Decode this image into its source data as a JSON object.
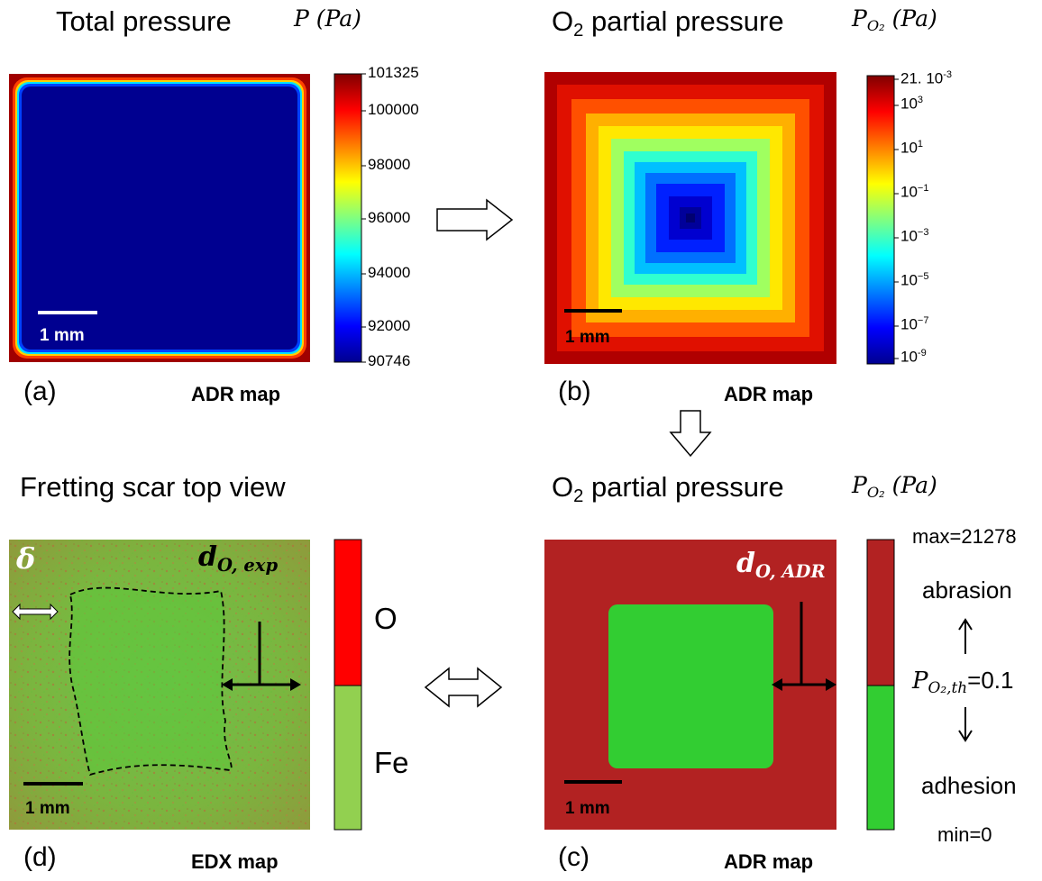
{
  "panel_a": {
    "title": "Total pressure",
    "colorbar_label": "P (Pa)",
    "ticks": [
      "101325",
      "100000",
      "98000",
      "96000",
      "94000",
      "92000",
      "90746"
    ],
    "scale": "1 mm",
    "letter": "(a)",
    "tag": "ADR map"
  },
  "panel_b": {
    "title_pre": "O",
    "title_sub": "2",
    "title_post": " partial pressure",
    "colorbar_label_pre": "P",
    "colorbar_label_sub": "O₂",
    "colorbar_label_post": " (Pa)",
    "tick_top": "21. 10",
    "tick_top_exp": "-3",
    "tick_exps": [
      "3",
      "1",
      "−1",
      "−3",
      "−5",
      "−7"
    ],
    "tick_base": "10",
    "tick_bottom": "10",
    "tick_bottom_exp": "-9",
    "scale": "1 mm",
    "letter": "(b)",
    "tag": "ADR map"
  },
  "panel_c": {
    "title_pre": "O",
    "title_sub": "2",
    "title_post": " partial pressure",
    "colorbar_label_pre": "P",
    "colorbar_label_sub": "O₂",
    "colorbar_label_post": " (Pa)",
    "distance_label_pre": "d",
    "distance_label_sub": "O, ADR",
    "max_label": "max=21278",
    "upper_regime": "abrasion",
    "threshold_pre": "P",
    "threshold_sub": "O₂,th",
    "threshold_post": "=0.1",
    "lower_regime": "adhesion",
    "min_label": "min=0",
    "scale": "1 mm",
    "letter": "(c)",
    "tag": "ADR map"
  },
  "panel_d": {
    "title": "Fretting scar top view",
    "delta_label": "δ",
    "distance_label_pre": "d",
    "distance_label_sub": "O, exp",
    "legend_upper": "O",
    "legend_lower": "Fe",
    "scale": "1 mm",
    "letter": "(d)",
    "tag": "EDX map"
  },
  "colors": {
    "jet_dark_blue": "#00008f",
    "jet_dark_red": "#800000",
    "abrasion_red": "#b22222",
    "adhesion_green": "#32cd32",
    "edx_red": "#ff0000",
    "edx_green": "#92d050"
  }
}
